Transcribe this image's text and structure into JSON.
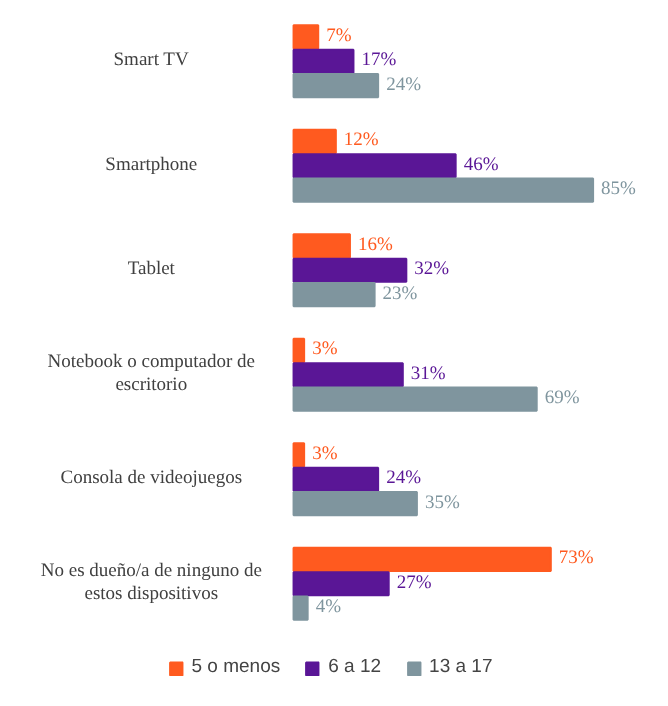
{
  "chart_data": {
    "type": "bar",
    "orientation": "horizontal",
    "categories": [
      "Smart TV",
      "Smartphone",
      "Tablet",
      "Notebook o computador de escritorio",
      "Consola de videojuegos",
      "No es dueño/a de ninguno de estos dispositivos"
    ],
    "series": [
      {
        "name": "5 o menos",
        "color": "#ff5a1f",
        "values": [
          7,
          12,
          16,
          3,
          3,
          73
        ],
        "value_labels": [
          "7%",
          "12%",
          "16%",
          "3%",
          "3%",
          "73%"
        ]
      },
      {
        "name": "6 a 12",
        "color": "#5a1696",
        "values": [
          17,
          46,
          32,
          31,
          24,
          27
        ],
        "value_labels": [
          "17%",
          "46%",
          "32%",
          "31%",
          "24%",
          "27%"
        ]
      },
      {
        "name": "13 a 17",
        "color": "#7f959e",
        "values": [
          24,
          85,
          23,
          69,
          35,
          4
        ],
        "value_labels": [
          "24%",
          "85%",
          "23%",
          "69%",
          "35%",
          "4%"
        ]
      }
    ],
    "legend": "bottom",
    "grid": false
  }
}
